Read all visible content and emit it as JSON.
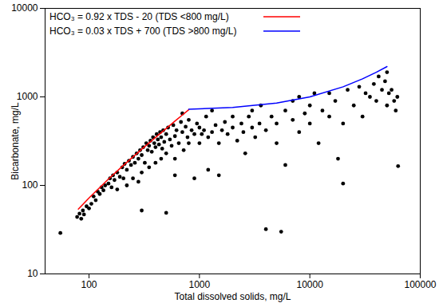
{
  "chart_data": {
    "type": "scatter",
    "x_label": "Total dissolved solids, mg/L",
    "y_label": "Bicarbonate, mg/L",
    "log": true,
    "grid": false,
    "legend": "top-left",
    "xlim": [
      40,
      100000
    ],
    "ylim": [
      10,
      10000
    ],
    "xticks": [
      100,
      1000,
      10000,
      100000
    ],
    "yticks": [
      10,
      100,
      1000,
      10000
    ],
    "series": [
      {
        "type": "scatter",
        "color": "#000000",
        "marker": "circle",
        "x": [
          55,
          78,
          82,
          85,
          88,
          90,
          95,
          100,
          105,
          110,
          115,
          120,
          125,
          130,
          135,
          140,
          150,
          155,
          160,
          165,
          170,
          180,
          190,
          200,
          205,
          210,
          220,
          230,
          240,
          250,
          260,
          270,
          280,
          290,
          300,
          310,
          320,
          330,
          340,
          350,
          360,
          370,
          380,
          390,
          400,
          410,
          420,
          430,
          440,
          450,
          460,
          470,
          480,
          500,
          520,
          540,
          560,
          580,
          600,
          620,
          650,
          680,
          700,
          720,
          750,
          780,
          800,
          250,
          300,
          350,
          400,
          450,
          500,
          600,
          180,
          220,
          280,
          500,
          300,
          600,
          850,
          900,
          950,
          1000,
          1000,
          1050,
          1100,
          1150,
          1200,
          1300,
          1400,
          1500,
          1500,
          1600,
          1700,
          1800,
          2000,
          2000,
          2200,
          2400,
          2500,
          2600,
          2800,
          3000,
          3000,
          3200,
          3500,
          3600,
          4000,
          4000,
          4500,
          5000,
          5000,
          5500,
          6000,
          6000,
          7000,
          7000,
          8000,
          8000,
          9000,
          10000,
          10000,
          11000,
          12000,
          13000,
          15000,
          15000,
          17000,
          18000,
          20000,
          20000,
          22000,
          25000,
          28000,
          30000,
          32000,
          35000,
          38000,
          40000,
          42000,
          45000,
          48000,
          50000,
          50000,
          52000,
          55000,
          58000,
          60000,
          62000,
          63000,
          1200,
          900,
          1300,
          700,
          800
        ],
        "values": [
          29,
          44,
          48,
          42,
          52,
          47,
          58,
          55,
          62,
          75,
          68,
          85,
          80,
          95,
          88,
          100,
          105,
          120,
          95,
          130,
          115,
          140,
          125,
          160,
          120,
          175,
          150,
          190,
          170,
          210,
          180,
          230,
          200,
          250,
          220,
          270,
          180,
          300,
          250,
          280,
          320,
          240,
          350,
          300,
          270,
          380,
          330,
          290,
          400,
          350,
          260,
          420,
          310,
          380,
          450,
          330,
          280,
          480,
          360,
          420,
          300,
          520,
          400,
          250,
          460,
          350,
          550,
          120,
          140,
          160,
          180,
          200,
          230,
          200,
          90,
          100,
          110,
          49,
          52,
          130,
          420,
          380,
          500,
          450,
          300,
          380,
          420,
          600,
          350,
          400,
          480,
          300,
          130,
          420,
          520,
          380,
          450,
          600,
          320,
          500,
          400,
          230,
          600,
          450,
          700,
          350,
          500,
          800,
          420,
          32,
          600,
          500,
          300,
          30,
          700,
          170,
          550,
          900,
          400,
          1000,
          650,
          500,
          800,
          1100,
          300,
          700,
          600,
          1100,
          900,
          200,
          500,
          105,
          1200,
          800,
          1300,
          600,
          1100,
          1000,
          1400,
          900,
          1700,
          1200,
          1500,
          1900,
          800,
          1100,
          1200,
          900,
          700,
          1000,
          165,
          150,
          120,
          700,
          650,
          300
        ]
      },
      {
        "name": "HCO₃ = 0.92 x TDS - 20 (TDS <800 mg/L)",
        "type": "line",
        "color": "#ff0000",
        "line_style": "solid",
        "x": [
          80,
          100,
          150,
          200,
          300,
          400,
          500,
          600,
          700,
          800
        ],
        "values": [
          54,
          72,
          118,
          164,
          256,
          348,
          440,
          532,
          624,
          716
        ]
      },
      {
        "name": "HCO₃ = 0.03 x TDS + 700 (TDS >800 mg/L)",
        "type": "line",
        "color": "#0000ff",
        "line_style": "solid",
        "x": [
          800,
          2000,
          5000,
          10000,
          20000,
          30000,
          40000,
          50000
        ],
        "values": [
          724,
          760,
          850,
          1000,
          1300,
          1600,
          1900,
          2200
        ]
      }
    ]
  }
}
